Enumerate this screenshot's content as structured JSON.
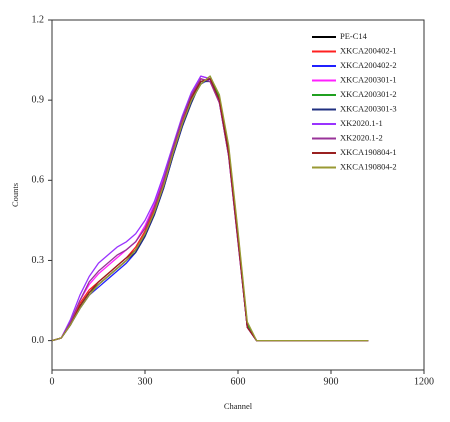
{
  "chart_data": {
    "type": "line",
    "x_label": "Channel",
    "y_label": "Counts",
    "x": [
      0,
      30,
      60,
      90,
      120,
      150,
      180,
      210,
      240,
      270,
      300,
      330,
      360,
      390,
      420,
      450,
      480,
      510,
      540,
      570,
      600,
      630,
      660,
      1020
    ],
    "xlim": [
      0,
      1200
    ],
    "xticks": [
      0,
      300,
      600,
      900,
      1200
    ],
    "ylim": [
      -0.11,
      1.2
    ],
    "yticks": [
      {
        "value": 0,
        "label": "0.0"
      },
      0.3,
      0.6,
      0.9,
      1.2
    ],
    "legend": "top-right",
    "series": [
      {
        "name": "PE-C14",
        "color": "#000000",
        "values": [
          0,
          0.01,
          0.06,
          0.13,
          0.18,
          0.21,
          0.24,
          0.27,
          0.3,
          0.34,
          0.4,
          0.48,
          0.58,
          0.7,
          0.81,
          0.9,
          0.97,
          0.98,
          0.9,
          0.7,
          0.38,
          0.05,
          0,
          0
        ]
      },
      {
        "name": "XKCA200402-1",
        "color": "#ff2020",
        "values": [
          0,
          0.01,
          0.07,
          0.14,
          0.19,
          0.22,
          0.25,
          0.28,
          0.31,
          0.35,
          0.41,
          0.49,
          0.59,
          0.71,
          0.82,
          0.91,
          0.98,
          0.97,
          0.89,
          0.69,
          0.37,
          0.05,
          0,
          0
        ]
      },
      {
        "name": "XKCA200402-2",
        "color": "#2020ff",
        "values": [
          0,
          0.01,
          0.06,
          0.12,
          0.17,
          0.2,
          0.23,
          0.26,
          0.29,
          0.33,
          0.39,
          0.47,
          0.57,
          0.69,
          0.8,
          0.9,
          0.96,
          0.98,
          0.91,
          0.71,
          0.39,
          0.06,
          0,
          0
        ]
      },
      {
        "name": "XKCA200301-1",
        "color": "#ff20ff",
        "values": [
          0,
          0.01,
          0.07,
          0.15,
          0.21,
          0.25,
          0.28,
          0.31,
          0.34,
          0.37,
          0.43,
          0.51,
          0.61,
          0.72,
          0.83,
          0.92,
          0.99,
          0.98,
          0.9,
          0.7,
          0.38,
          0.05,
          0,
          0
        ]
      },
      {
        "name": "XKCA200301-2",
        "color": "#20a020",
        "values": [
          0,
          0.01,
          0.06,
          0.13,
          0.18,
          0.21,
          0.24,
          0.27,
          0.3,
          0.34,
          0.4,
          0.48,
          0.58,
          0.7,
          0.81,
          0.9,
          0.96,
          0.99,
          0.91,
          0.72,
          0.4,
          0.06,
          0,
          0
        ]
      },
      {
        "name": "XKCA200301-3",
        "color": "#203080",
        "values": [
          0,
          0.01,
          0.06,
          0.12,
          0.17,
          0.21,
          0.24,
          0.27,
          0.3,
          0.33,
          0.39,
          0.47,
          0.57,
          0.69,
          0.8,
          0.89,
          0.97,
          0.97,
          0.9,
          0.7,
          0.38,
          0.05,
          0,
          0
        ]
      },
      {
        "name": "XK2020.1-1",
        "color": "#9933ff",
        "values": [
          0,
          0.01,
          0.08,
          0.17,
          0.24,
          0.29,
          0.32,
          0.35,
          0.37,
          0.4,
          0.45,
          0.52,
          0.62,
          0.73,
          0.84,
          0.93,
          0.99,
          0.98,
          0.89,
          0.69,
          0.37,
          0.05,
          0,
          0
        ]
      },
      {
        "name": "XK2020.1-2",
        "color": "#993399",
        "values": [
          0,
          0.01,
          0.07,
          0.15,
          0.22,
          0.26,
          0.29,
          0.32,
          0.34,
          0.37,
          0.42,
          0.5,
          0.6,
          0.72,
          0.83,
          0.92,
          0.98,
          0.97,
          0.89,
          0.69,
          0.37,
          0.05,
          0,
          0
        ]
      },
      {
        "name": "XKCA190804-1",
        "color": "#992020",
        "values": [
          0,
          0.01,
          0.06,
          0.13,
          0.18,
          0.22,
          0.25,
          0.28,
          0.31,
          0.34,
          0.4,
          0.48,
          0.58,
          0.7,
          0.81,
          0.91,
          0.97,
          0.98,
          0.9,
          0.7,
          0.38,
          0.05,
          0,
          0
        ]
      },
      {
        "name": "XKCA190804-2",
        "color": "#999933",
        "values": [
          0,
          0.01,
          0.06,
          0.12,
          0.17,
          0.21,
          0.24,
          0.27,
          0.3,
          0.34,
          0.4,
          0.48,
          0.58,
          0.7,
          0.81,
          0.9,
          0.96,
          0.99,
          0.92,
          0.73,
          0.41,
          0.07,
          0,
          0
        ]
      }
    ]
  }
}
